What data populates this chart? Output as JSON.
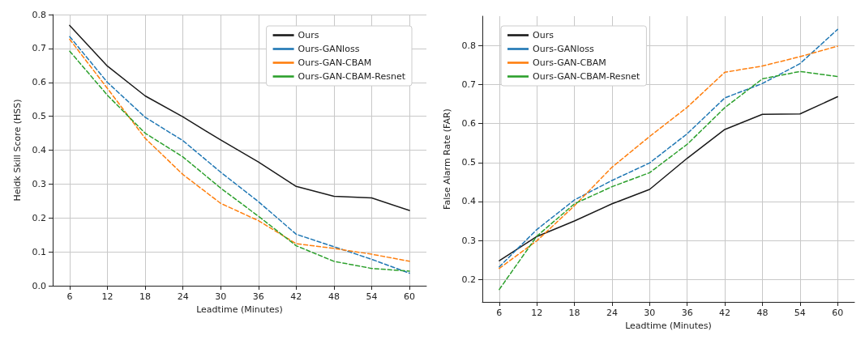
{
  "chart_data": [
    {
      "type": "line",
      "xlabel": "Leadtime (Minutes)",
      "ylabel": "Heidk Skill Score (HSS)",
      "x": [
        6,
        12,
        18,
        24,
        30,
        36,
        42,
        48,
        54,
        60
      ],
      "xlim": [
        3.3,
        62.7
      ],
      "xticks": [
        6,
        12,
        18,
        24,
        30,
        36,
        42,
        48,
        54,
        60
      ],
      "ylim": [
        0,
        0.8
      ],
      "yticks": [
        {
          "value": 0,
          "label": "0.0"
        },
        0.1,
        0.2,
        0.3,
        0.4,
        0.5,
        0.6,
        0.7,
        0.8
      ],
      "grid": true,
      "legend": "top right",
      "series": [
        {
          "name": "Ours",
          "color": "#1a1a1a",
          "line_style": "solid",
          "values": [
            0.768,
            0.648,
            0.56,
            0.498,
            0.43,
            0.365,
            0.293,
            0.264,
            0.259,
            0.222
          ]
        },
        {
          "name": "Ours-GANloss",
          "color": "#1f77b4",
          "line_style": "dashed",
          "values": [
            0.735,
            0.6,
            0.497,
            0.428,
            0.335,
            0.248,
            0.152,
            0.115,
            0.078,
            0.037
          ]
        },
        {
          "name": "Ours-GAN-CBAM",
          "color": "#ff7f0e",
          "line_style": "dashed",
          "values": [
            0.727,
            0.582,
            0.435,
            0.328,
            0.243,
            0.192,
            0.124,
            0.11,
            0.093,
            0.072
          ]
        },
        {
          "name": "Ours-GAN-CBAM-Resnet",
          "color": "#2ca02c",
          "line_style": "dashed",
          "values": [
            0.692,
            0.562,
            0.45,
            0.38,
            0.288,
            0.205,
            0.118,
            0.072,
            0.051,
            0.043
          ]
        }
      ]
    },
    {
      "type": "line",
      "xlabel": "Leadtime (Minutes)",
      "ylabel": "False Alarm Rate (FAR)",
      "x": [
        6,
        12,
        18,
        24,
        30,
        36,
        42,
        48,
        54,
        60
      ],
      "xlim": [
        3.3,
        62.7
      ],
      "xticks": [
        6,
        12,
        18,
        24,
        30,
        36,
        42,
        48,
        54,
        60
      ],
      "ylim": [
        0.142,
        0.876
      ],
      "yticks": [
        0.2,
        0.3,
        0.4,
        0.5,
        0.6,
        0.7,
        0.8
      ],
      "grid": true,
      "legend": "top left",
      "series": [
        {
          "name": "Ours",
          "color": "#1a1a1a",
          "line_style": "solid",
          "values": [
            0.248,
            0.31,
            0.35,
            0.394,
            0.431,
            0.511,
            0.585,
            0.624,
            0.625,
            0.669
          ]
        },
        {
          "name": "Ours-GANloss",
          "color": "#1f77b4",
          "line_style": "dashed",
          "values": [
            0.232,
            0.328,
            0.404,
            0.454,
            0.499,
            0.574,
            0.666,
            0.703,
            0.754,
            0.842
          ]
        },
        {
          "name": "Ours-GAN-CBAM",
          "color": "#ff7f0e",
          "line_style": "dashed",
          "values": [
            0.228,
            0.299,
            0.389,
            0.488,
            0.567,
            0.642,
            0.732,
            0.748,
            0.772,
            0.799
          ]
        },
        {
          "name": "Ours-GAN-CBAM-Resnet",
          "color": "#2ca02c",
          "line_style": "dashed",
          "values": [
            0.174,
            0.311,
            0.394,
            0.438,
            0.474,
            0.547,
            0.641,
            0.715,
            0.734,
            0.721
          ]
        }
      ]
    }
  ]
}
